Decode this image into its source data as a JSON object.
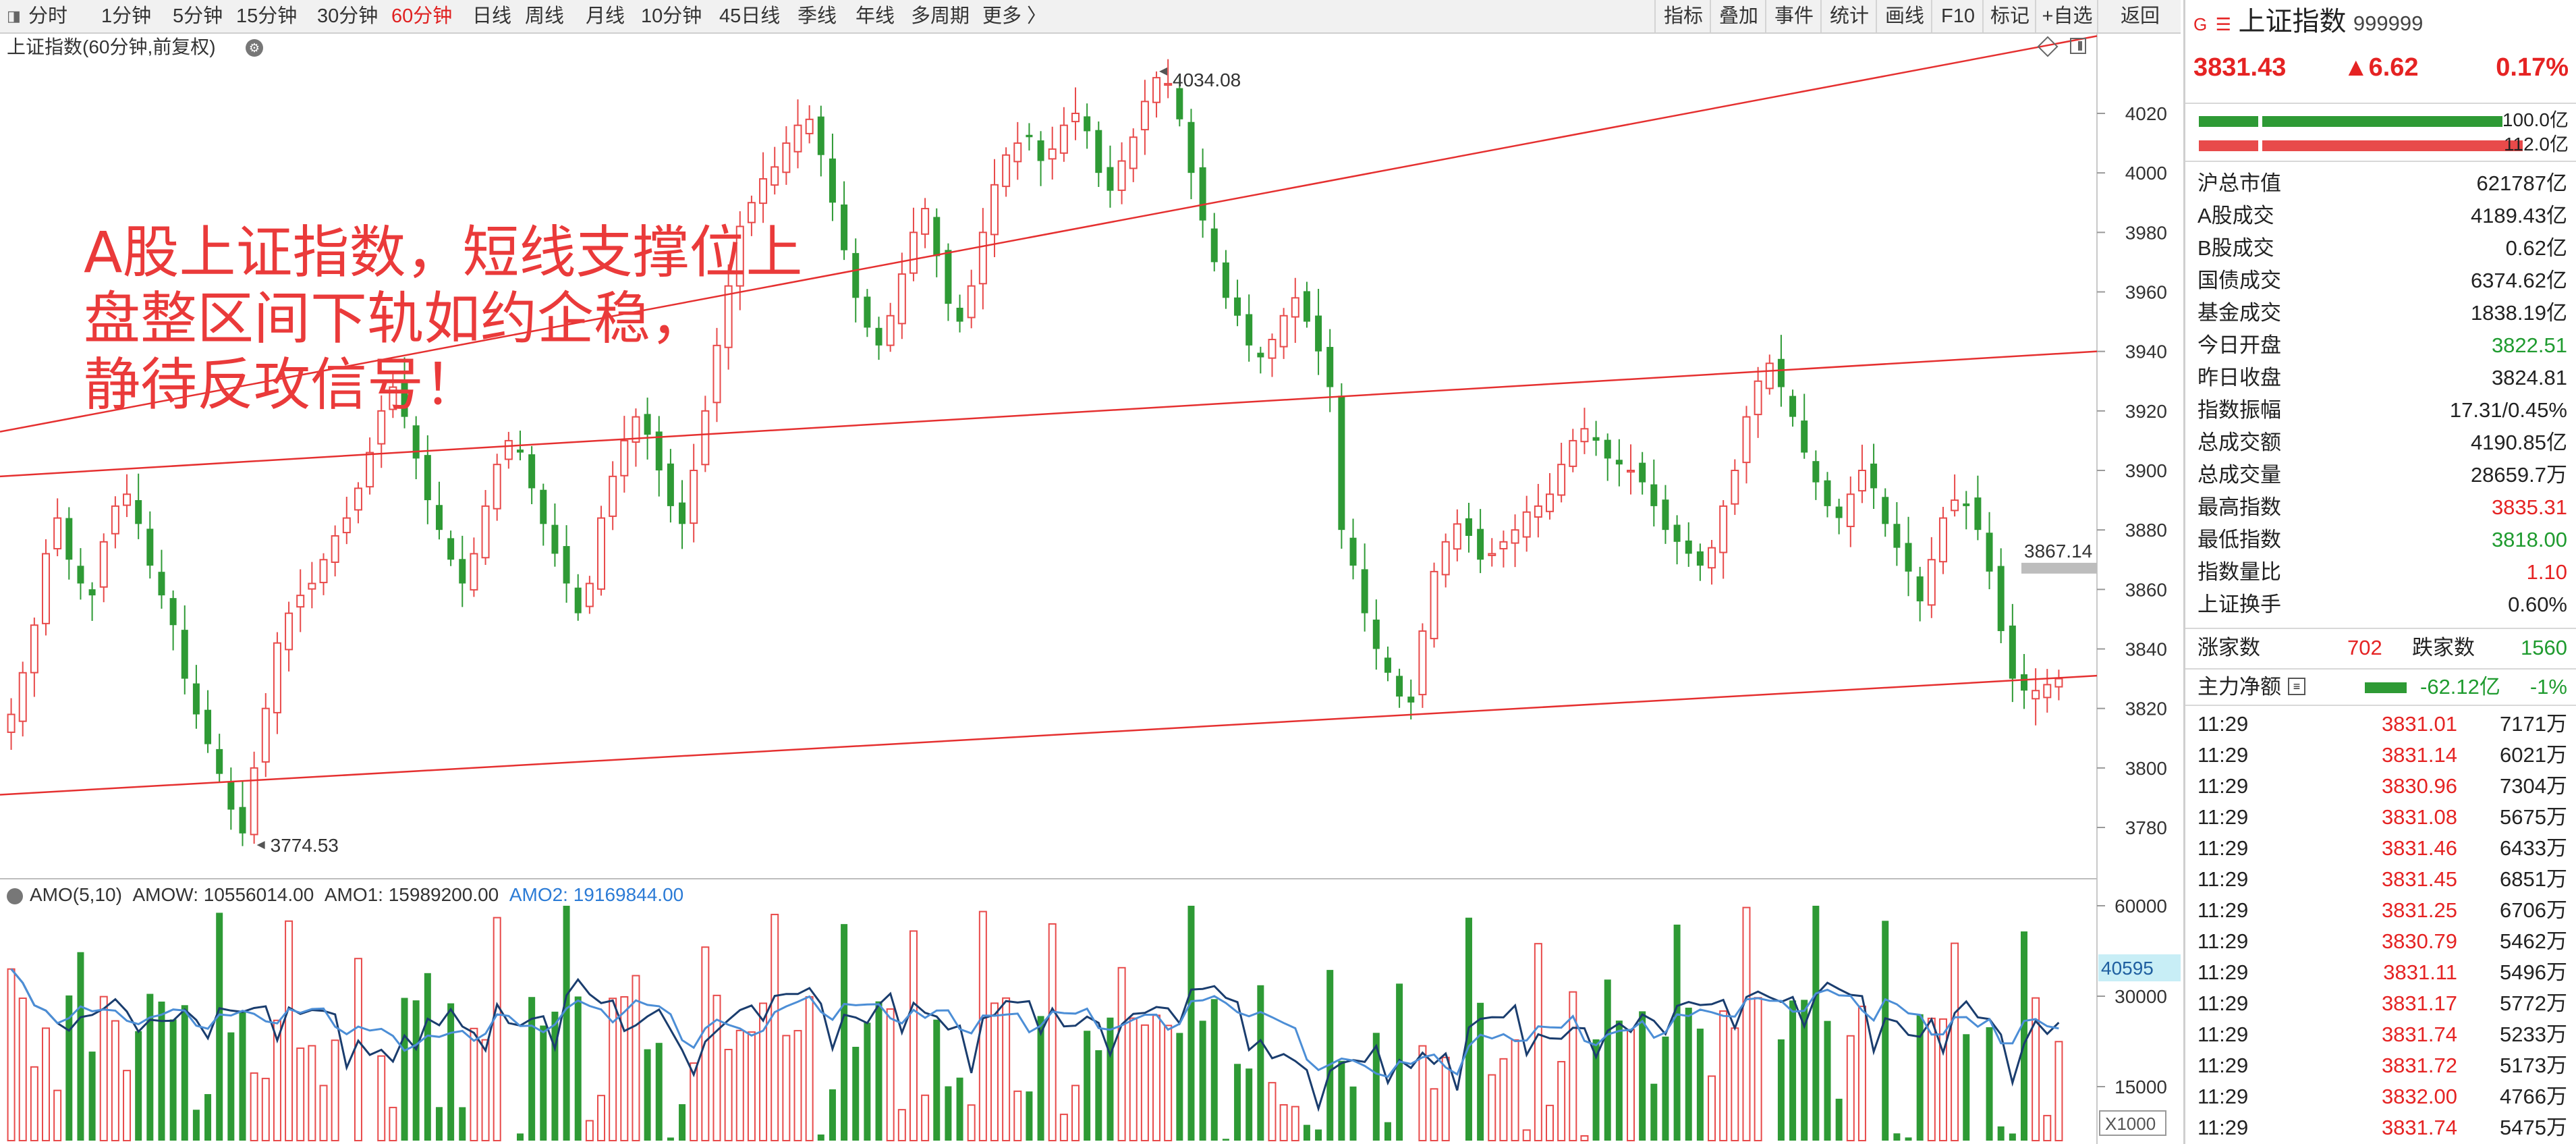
{
  "toolbar": {
    "periods": [
      {
        "label": "分时"
      },
      {
        "label": "1分钟"
      },
      {
        "label": "5分钟"
      },
      {
        "label": "15分钟"
      },
      {
        "label": "30分钟"
      },
      {
        "label": "60分钟",
        "active": true
      },
      {
        "label": "日线"
      },
      {
        "label": "周线"
      },
      {
        "label": "月线"
      },
      {
        "label": "10分钟"
      },
      {
        "label": "45日线"
      },
      {
        "label": "季线"
      },
      {
        "label": "年线"
      },
      {
        "label": "多周期"
      },
      {
        "label": "更多 〉"
      }
    ],
    "right_tools": [
      "指标",
      "叠加",
      "事件",
      "统计",
      "画线",
      "F10",
      "标记",
      "+自选",
      "返回"
    ]
  },
  "chart": {
    "title": "上证指数(60分钟,前复权)",
    "annotation_lines": [
      "A股上证指数，短线支撑位上",
      "盘整区间下轨如约企稳，",
      "静待反攻信号！"
    ],
    "high_label": "4034.08",
    "low_label": "3774.53",
    "last_price_label": "3867.14",
    "price_ticks": [
      "4020",
      "4000",
      "3980",
      "3960",
      "3940",
      "3920",
      "3900",
      "3880",
      "3860",
      "3840",
      "3820",
      "3800",
      "3780"
    ]
  },
  "volume": {
    "legend_name": "AMO(5,10)",
    "amow": "AMOW: 10556014.00",
    "amo1": "AMO1: 15989200.00",
    "amo2": "AMO2: 19169844.00",
    "ticks": [
      "60000",
      "30000",
      "15000"
    ],
    "current_label": "40595",
    "multiplier": "X1000"
  },
  "colors": {
    "up": "#e84a4a",
    "down": "#2e9a35",
    "channel": "#e53030",
    "amo1": "#1a3d6e",
    "amo2": "#4c8ed6"
  },
  "chart_data": {
    "type": "candlestick",
    "title": "上证指数(60分钟,前复权)",
    "y_range": [
      3765,
      4045
    ],
    "marked_high": 4034.08,
    "marked_low": 3774.53,
    "last": 3867.14,
    "close_path": [
      3818,
      3832,
      3848,
      3872,
      3884,
      3870,
      3862,
      3858,
      3876,
      3888,
      3892,
      3882,
      3868,
      3858,
      3848,
      3830,
      3818,
      3808,
      3798,
      3786,
      3778,
      3800,
      3820,
      3842,
      3852,
      3858,
      3862,
      3870,
      3878,
      3884,
      3894,
      3906,
      3920,
      3928,
      3918,
      3904,
      3890,
      3880,
      3870,
      3862,
      3872,
      3888,
      3902,
      3910,
      3906,
      3894,
      3882,
      3872,
      3862,
      3852,
      3862,
      3884,
      3898,
      3910,
      3918,
      3912,
      3900,
      3888,
      3882,
      3900,
      3920,
      3942,
      3962,
      3982,
      3990,
      3998,
      4002,
      4010,
      4016,
      4018,
      4006,
      3990,
      3974,
      3958,
      3948,
      3942,
      3952,
      3966,
      3980,
      3988,
      3972,
      3956,
      3950,
      3962,
      3980,
      3996,
      4006,
      4010,
      4012,
      4004,
      4008,
      4016,
      4020,
      4014,
      4000,
      3994,
      4004,
      4012,
      4024,
      4032,
      4030,
      4018,
      4000,
      3984,
      3970,
      3958,
      3952,
      3942,
      3938,
      3944,
      3952,
      3958,
      3950,
      3940,
      3928,
      3880,
      3868,
      3852,
      3840,
      3832,
      3824,
      3822,
      3846,
      3866,
      3876,
      3882,
      3878,
      3870,
      3872,
      3876,
      3880,
      3886,
      3888,
      3892,
      3902,
      3910,
      3914,
      3910,
      3904,
      3902,
      3900,
      3896,
      3888,
      3880,
      3876,
      3872,
      3868,
      3874,
      3888,
      3900,
      3918,
      3930,
      3936,
      3928,
      3918,
      3906,
      3896,
      3888,
      3884,
      3892,
      3900,
      3894,
      3882,
      3874,
      3866,
      3856,
      3870,
      3884,
      3890,
      3888,
      3880,
      3866,
      3846,
      3830,
      3826,
      3826,
      3828,
      3830
    ],
    "volume_amo": {
      "amow": 10556014.0,
      "amo1": 15989200.0,
      "amo2": 19169844.0,
      "last": 40595
    }
  },
  "info": {
    "name": "上证指数",
    "code": "999999",
    "price": "3831.43",
    "change": "▲6.62",
    "change_pct": "0.17%",
    "bar_top_label": "100.0亿",
    "bar_bottom_label": "112.0亿",
    "rows": [
      {
        "label": "沪总市值",
        "value": "621787亿",
        "color": ""
      },
      {
        "label": "A股成交",
        "value": "4189.43亿",
        "color": ""
      },
      {
        "label": "B股成交",
        "value": "0.62亿",
        "color": ""
      },
      {
        "label": "国债成交",
        "value": "6374.62亿",
        "color": ""
      },
      {
        "label": "基金成交",
        "value": "1838.19亿",
        "color": ""
      },
      {
        "label": "今日开盘",
        "value": "3822.51",
        "color": "green"
      },
      {
        "label": "昨日收盘",
        "value": "3824.81",
        "color": ""
      },
      {
        "label": "指数振幅",
        "value": "17.31/0.45%",
        "color": ""
      },
      {
        "label": "总成交额",
        "value": "4190.85亿",
        "color": ""
      },
      {
        "label": "总成交量",
        "value": "28659.7万",
        "color": ""
      },
      {
        "label": "最高指数",
        "value": "3835.31",
        "color": "red"
      },
      {
        "label": "最低指数",
        "value": "3818.00",
        "color": "green"
      },
      {
        "label": "指数量比",
        "value": "1.10",
        "color": "red"
      },
      {
        "label": "上证换手",
        "value": "0.60%",
        "color": ""
      }
    ],
    "breadth": {
      "up_label": "涨家数",
      "up_value": "702",
      "down_label": "跌家数",
      "down_value": "1560"
    },
    "flow": {
      "label": "主力净额",
      "value": "-62.12亿",
      "pct": "-1%"
    },
    "ticks": [
      {
        "time": "11:29",
        "price": "3831.01",
        "vol": "7171万"
      },
      {
        "time": "11:29",
        "price": "3831.14",
        "vol": "6021万"
      },
      {
        "time": "11:29",
        "price": "3830.96",
        "vol": "7304万"
      },
      {
        "time": "11:29",
        "price": "3831.08",
        "vol": "5675万"
      },
      {
        "time": "11:29",
        "price": "3831.46",
        "vol": "6433万"
      },
      {
        "time": "11:29",
        "price": "3831.45",
        "vol": "6851万"
      },
      {
        "time": "11:29",
        "price": "3831.25",
        "vol": "6706万"
      },
      {
        "time": "11:29",
        "price": "3830.79",
        "vol": "5462万"
      },
      {
        "time": "11:29",
        "price": "3831.11",
        "vol": "5496万"
      },
      {
        "time": "11:29",
        "price": "3831.17",
        "vol": "5772万"
      },
      {
        "time": "11:29",
        "price": "3831.74",
        "vol": "5233万"
      },
      {
        "time": "11:29",
        "price": "3831.72",
        "vol": "5173万"
      },
      {
        "time": "11:29",
        "price": "3832.00",
        "vol": "4766万"
      },
      {
        "time": "11:29",
        "price": "3831.74",
        "vol": "5475万"
      }
    ]
  }
}
